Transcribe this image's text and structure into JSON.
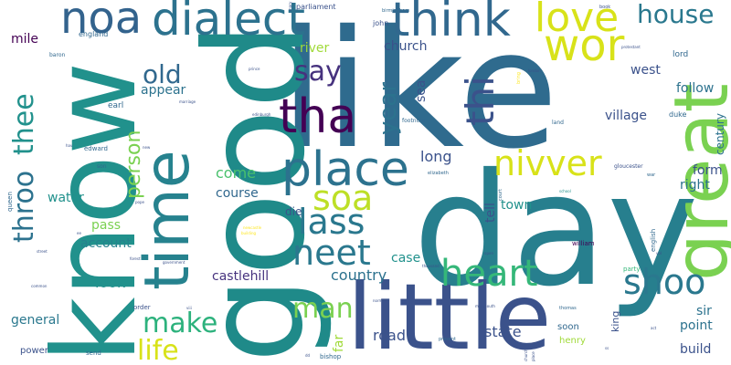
{
  "words": {
    "like": "like",
    "day": "day",
    "good": "good",
    "know": "know",
    "little": "little",
    "great": "great",
    "time": "time",
    "think": "think",
    "dialect": "dialect",
    "noa": "noa",
    "love": "love",
    "wor": "wor",
    "house": "house",
    "tha": "tha",
    "place": "place",
    "thi": "thi",
    "say": "say",
    "old": "old",
    "soa": "soa",
    "nivver": "nivver",
    "lass": "lass",
    "neet": "neet",
    "heart": "heart",
    "shoo": "shoo",
    "throo": "throo",
    "thee": "thee",
    "make": "make",
    "man": "man",
    "life": "life",
    "year": "year",
    "person": "person",
    "church": "church",
    "river": "river",
    "long": "long",
    "come": "come",
    "course": "course",
    "account": "account",
    "country": "country",
    "look": "look",
    "road": "road",
    "state": "state",
    "castlehill": "castlehill",
    "general": "general",
    "water": "water",
    "pass": "pass",
    "appear": "appear",
    "mile": "mile",
    "village": "village",
    "follow": "follow",
    "west": "west",
    "form": "form",
    "right": "right",
    "town": "town",
    "tell": "tell",
    "sea": "sea",
    "case": "case",
    "far": "far",
    "point": "point",
    "build": "build",
    "sir": "sir",
    "die": "die",
    "century": "century",
    "king": "king",
    "soon": "soon",
    "henry": "henry",
    "power": "power",
    "earl": "earl",
    "lord": "lord",
    "duke": "duke",
    "parliament": "parliament",
    "john": "john",
    "england": "england",
    "queen": "queen",
    "edward": "edward",
    "william": "william",
    "english": "english",
    "party": "party",
    "gloucester": "gloucester",
    "order": "order",
    "send": "send",
    "bishop": "bishop",
    "baron": "baron",
    "son": "son",
    "elizabeth": "elizabeth",
    "footnote": "footnote",
    "land": "land",
    "book": "book",
    "sheffield": "sheffield",
    "present": "present",
    "thomas": "thomas",
    "court": "court",
    "birmingham": "birmingham",
    "war": "war",
    "protestant": "protestant",
    "prince": "prince",
    "marriage": "marriage",
    "building": "building",
    "common": "common",
    "street": "street",
    "school": "school",
    "act": "act",
    "forest": "forest",
    "government": "government",
    "open": "open",
    "thousand": "thousand",
    "monmouth": "monmouth",
    "vol": "vol",
    "pope": "pope",
    "new": "new",
    "hav": "hav",
    "viii": "viii",
    "bring": "bring",
    "london": "london",
    "edinburgh": "edinburgh",
    "mary": "mary",
    "newcastle": "newcastle",
    "church_sm": "church",
    "place_sm": "place",
    "norman": "norman",
    "ee": "ee",
    "ss": "ss",
    "dd": "dd"
  },
  "colors": {
    "dark_purple": "#440154",
    "indigo": "#46327e",
    "deep_blue": "#365c8d",
    "blue": "#277f8e",
    "teal": "#1fa187",
    "green": "#4ac16d",
    "light_green": "#a0da39",
    "yellow": "#fde725",
    "background": "#ffffff"
  }
}
